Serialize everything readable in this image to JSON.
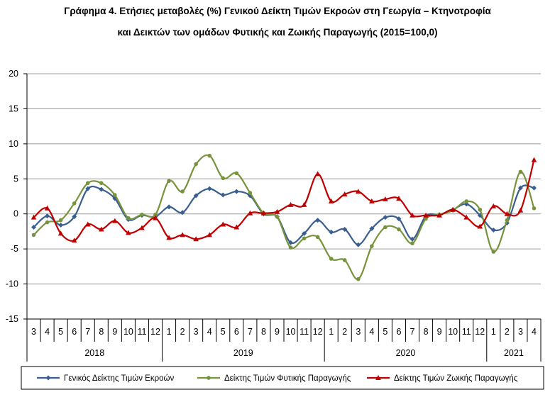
{
  "title_line1": "Γράφημα 4. Ετήσιες μεταβολές (%) Γενικού Δείκτη Τιμών Εκροών στη Γεωργία – Κτηνοτροφία",
  "title_line2": "και Δεικτών των ομάδων Φυτικής και Ζωικής Παραγωγής (2015=100,0)",
  "chart_data": {
    "type": "line",
    "title": "Γράφημα 4. Ετήσιες μεταβολές (%) Γενικού Δείκτη Τιμών Εκροών στη Γεωργία – Κτηνοτροφία και Δεικτών των ομάδων Φυτικής και Ζωικής Παραγωγής (2015=100,0)",
    "ylim": [
      -15,
      20
    ],
    "yticks": [
      -15,
      -10,
      -5,
      0,
      5,
      10,
      15,
      20
    ],
    "grid": "horizontal",
    "legend_position": "bottom",
    "categories": [
      "3",
      "4",
      "5",
      "6",
      "7",
      "8",
      "9",
      "10",
      "11",
      "12",
      "1",
      "2",
      "3",
      "4",
      "5",
      "6",
      "7",
      "8",
      "9",
      "10",
      "11",
      "12",
      "1",
      "2",
      "3",
      "4",
      "5",
      "6",
      "7",
      "8",
      "9",
      "10",
      "11",
      "12",
      "1",
      "2",
      "3",
      "4"
    ],
    "years": [
      {
        "label": "2018",
        "span": 10
      },
      {
        "label": "2019",
        "span": 12
      },
      {
        "label": "2020",
        "span": 12
      },
      {
        "label": "2021",
        "span": 4
      }
    ],
    "series": [
      {
        "name": "Γενικός Δείκτης Τιμών Εκροών",
        "color": "#3a5f8f",
        "marker": "diamond",
        "values": [
          -1.9,
          -0.3,
          -1.6,
          -0.4,
          3.6,
          3.5,
          2.2,
          -0.8,
          -0.2,
          -0.4,
          1.0,
          0.2,
          2.6,
          3.6,
          2.7,
          3.2,
          2.6,
          0.0,
          -0.4,
          -4.1,
          -2.8,
          -0.9,
          -2.6,
          -2.2,
          -4.4,
          -2.1,
          -0.5,
          -0.7,
          -3.6,
          -0.3,
          -0.1,
          0.6,
          1.4,
          -0.2,
          -2.3,
          -1.3,
          3.7,
          3.7
        ]
      },
      {
        "name": "Δείκτης Τιμών Φυτικής Παραγωγής",
        "color": "#77933c",
        "marker": "circle",
        "values": [
          -3.0,
          -1.2,
          -0.9,
          1.5,
          4.4,
          4.4,
          2.7,
          -0.6,
          -0.1,
          -0.1,
          4.7,
          3.2,
          7.1,
          8.3,
          5.1,
          5.8,
          3.0,
          0.1,
          -0.4,
          -4.8,
          -3.5,
          -3.3,
          -6.4,
          -6.6,
          -9.3,
          -4.6,
          -1.9,
          -2.2,
          -4.2,
          -0.7,
          -0.1,
          0.5,
          1.8,
          0.6,
          -5.4,
          -0.9,
          6.0,
          0.8
        ]
      },
      {
        "name": "Δείκτης Τιμών Ζωικής Παραγωγής",
        "color": "#c00000",
        "marker": "triangle",
        "values": [
          -0.5,
          0.8,
          -2.8,
          -3.8,
          -1.5,
          -2.2,
          -1.0,
          -2.7,
          -2.0,
          -0.6,
          -3.4,
          -3.0,
          -3.6,
          -3.0,
          -1.5,
          -1.9,
          0.1,
          0.1,
          0.3,
          1.3,
          1.3,
          5.7,
          1.8,
          2.8,
          3.2,
          1.8,
          2.1,
          2.2,
          -0.2,
          -0.2,
          -0.2,
          0.6,
          -0.5,
          -1.8,
          1.1,
          0.0,
          0.5,
          7.7
        ]
      }
    ]
  }
}
